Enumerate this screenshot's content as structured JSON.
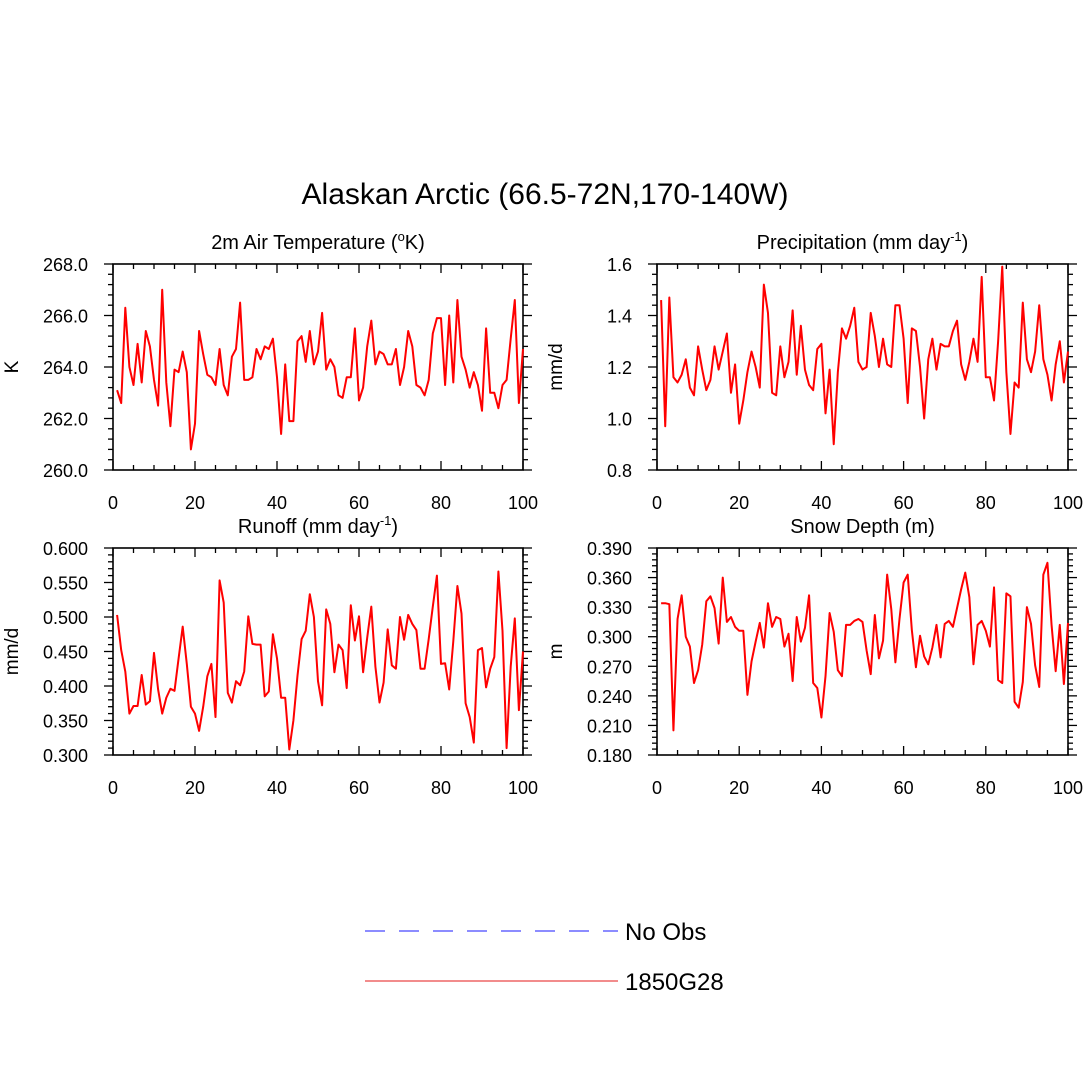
{
  "title": "Alaskan Arctic (66.5-72N,170-140W)",
  "colors": {
    "model": "#ff0000",
    "obs": "#6666ff",
    "legend_model": "#ee6666"
  },
  "legend": {
    "items": [
      {
        "label": "No Obs",
        "style": "dashed",
        "color": "#6666ff"
      },
      {
        "label": "1850G28",
        "style": "solid",
        "color": "#ee6666"
      }
    ]
  },
  "chart_data": [
    {
      "type": "line",
      "title": "2m Air Temperature (",
      "title_sup": "o",
      "title_end": "K)",
      "ylabel": "K",
      "xlim": [
        0,
        100
      ],
      "ylim": [
        260,
        268
      ],
      "xticks": [
        0,
        20,
        40,
        60,
        80,
        100
      ],
      "xtick_labels": [
        "0",
        "20",
        "40",
        "60",
        "80",
        "100"
      ],
      "yticks": [
        260,
        262,
        264,
        266,
        268
      ],
      "ytick_labels": [
        "260.0",
        "262.0",
        "264.0",
        "266.0",
        "268.0"
      ],
      "x_minor": 5,
      "y_minor": 0.4,
      "series": [
        {
          "name": "1850G28",
          "color": "#ff0000",
          "values": [
            263.1,
            262.6,
            266.3,
            264.0,
            263.3,
            264.9,
            263.4,
            265.4,
            264.8,
            263.5,
            262.5,
            267.0,
            263.4,
            261.7,
            263.9,
            263.8,
            264.6,
            263.8,
            260.8,
            261.8,
            265.4,
            264.5,
            263.7,
            263.6,
            263.3,
            264.7,
            263.3,
            262.9,
            264.4,
            264.7,
            266.5,
            263.5,
            263.5,
            263.6,
            264.7,
            264.3,
            264.8,
            264.7,
            265.1,
            263.6,
            261.4,
            264.1,
            261.9,
            261.9,
            265.0,
            265.2,
            264.2,
            265.4,
            264.1,
            264.6,
            266.1,
            263.9,
            264.3,
            264.0,
            262.9,
            262.8,
            263.6,
            263.6,
            265.5,
            262.7,
            263.2,
            264.8,
            265.8,
            264.1,
            264.6,
            264.5,
            264.1,
            264.1,
            264.7,
            263.3,
            264.0,
            265.4,
            264.8,
            263.3,
            263.2,
            262.9,
            263.5,
            265.3,
            265.9,
            265.9,
            263.3,
            266.0,
            263.4,
            266.6,
            264.4,
            263.9,
            263.2,
            263.8,
            263.3,
            262.3,
            265.5,
            263.0,
            263.0,
            262.4,
            263.3,
            263.5,
            265.1,
            266.6,
            262.6,
            264.7
          ]
        }
      ]
    },
    {
      "type": "line",
      "title": "Precipitation (mm day",
      "title_sup": "-1",
      "title_end": ")",
      "ylabel": "mm/d",
      "xlim": [
        0,
        100
      ],
      "ylim": [
        0.8,
        1.6
      ],
      "xticks": [
        0,
        20,
        40,
        60,
        80,
        100
      ],
      "xtick_labels": [
        "0",
        "20",
        "40",
        "60",
        "80",
        "100"
      ],
      "yticks": [
        0.8,
        1.0,
        1.2,
        1.4,
        1.6
      ],
      "ytick_labels": [
        "0.8",
        "1.0",
        "1.2",
        "1.4",
        "1.6"
      ],
      "x_minor": 5,
      "y_minor": 0.04,
      "series": [
        {
          "name": "1850G28",
          "color": "#ff0000",
          "values": [
            1.46,
            0.97,
            1.47,
            1.16,
            1.14,
            1.17,
            1.23,
            1.12,
            1.09,
            1.28,
            1.19,
            1.11,
            1.15,
            1.28,
            1.19,
            1.26,
            1.33,
            1.1,
            1.21,
            0.98,
            1.07,
            1.18,
            1.26,
            1.2,
            1.12,
            1.52,
            1.41,
            1.1,
            1.09,
            1.28,
            1.16,
            1.22,
            1.42,
            1.17,
            1.36,
            1.19,
            1.13,
            1.11,
            1.27,
            1.29,
            1.02,
            1.19,
            0.9,
            1.18,
            1.35,
            1.31,
            1.36,
            1.43,
            1.22,
            1.19,
            1.2,
            1.41,
            1.32,
            1.2,
            1.31,
            1.21,
            1.2,
            1.44,
            1.44,
            1.31,
            1.06,
            1.35,
            1.34,
            1.2,
            1.0,
            1.23,
            1.31,
            1.19,
            1.29,
            1.28,
            1.28,
            1.34,
            1.38,
            1.21,
            1.15,
            1.22,
            1.31,
            1.22,
            1.55,
            1.16,
            1.16,
            1.07,
            1.3,
            1.59,
            1.18,
            0.94,
            1.14,
            1.12,
            1.45,
            1.23,
            1.18,
            1.26,
            1.44,
            1.23,
            1.17,
            1.07,
            1.21,
            1.3,
            1.14,
            1.26
          ]
        }
      ]
    },
    {
      "type": "line",
      "title": "Runoff (mm day",
      "title_sup": "-1",
      "title_end": ")",
      "ylabel": "mm/d",
      "xlim": [
        0,
        100
      ],
      "ylim": [
        0.3,
        0.6
      ],
      "xticks": [
        0,
        20,
        40,
        60,
        80,
        100
      ],
      "xtick_labels": [
        "0",
        "20",
        "40",
        "60",
        "80",
        "100"
      ],
      "yticks": [
        0.3,
        0.35,
        0.4,
        0.45,
        0.5,
        0.55,
        0.6
      ],
      "ytick_labels": [
        "0.300",
        "0.350",
        "0.400",
        "0.450",
        "0.500",
        "0.550",
        "0.600"
      ],
      "x_minor": 5,
      "y_minor": 0.01,
      "series": [
        {
          "name": "1850G28",
          "color": "#ff0000",
          "values": [
            0.503,
            0.452,
            0.421,
            0.36,
            0.371,
            0.371,
            0.416,
            0.373,
            0.378,
            0.448,
            0.395,
            0.36,
            0.383,
            0.396,
            0.393,
            0.44,
            0.486,
            0.432,
            0.37,
            0.36,
            0.335,
            0.37,
            0.414,
            0.432,
            0.355,
            0.553,
            0.521,
            0.39,
            0.376,
            0.407,
            0.401,
            0.421,
            0.501,
            0.461,
            0.46,
            0.46,
            0.385,
            0.392,
            0.475,
            0.44,
            0.383,
            0.383,
            0.308,
            0.35,
            0.415,
            0.468,
            0.48,
            0.533,
            0.5,
            0.407,
            0.372,
            0.511,
            0.49,
            0.42,
            0.46,
            0.452,
            0.397,
            0.517,
            0.466,
            0.501,
            0.42,
            0.47,
            0.515,
            0.428,
            0.376,
            0.405,
            0.482,
            0.43,
            0.425,
            0.5,
            0.467,
            0.503,
            0.49,
            0.481,
            0.425,
            0.425,
            0.468,
            0.515,
            0.56,
            0.432,
            0.433,
            0.395,
            0.465,
            0.545,
            0.505,
            0.375,
            0.355,
            0.318,
            0.452,
            0.455,
            0.398,
            0.425,
            0.442,
            0.566,
            0.48,
            0.31,
            0.428,
            0.498,
            0.365,
            0.45
          ]
        }
      ]
    },
    {
      "type": "line",
      "title": "Snow Depth (m)",
      "title_sup": "",
      "title_end": "",
      "ylabel": "m",
      "xlim": [
        0,
        100
      ],
      "ylim": [
        0.18,
        0.39
      ],
      "xticks": [
        0,
        20,
        40,
        60,
        80,
        100
      ],
      "xtick_labels": [
        "0",
        "20",
        "40",
        "60",
        "80",
        "100"
      ],
      "yticks": [
        0.18,
        0.21,
        0.24,
        0.27,
        0.3,
        0.33,
        0.36,
        0.39
      ],
      "ytick_labels": [
        "0.180",
        "0.210",
        "0.240",
        "0.270",
        "0.300",
        "0.330",
        "0.360",
        "0.390"
      ],
      "x_minor": 5,
      "y_minor": 0.006,
      "series": [
        {
          "name": "1850G28",
          "color": "#ff0000",
          "values": [
            0.334,
            0.334,
            0.333,
            0.205,
            0.318,
            0.342,
            0.3,
            0.29,
            0.253,
            0.266,
            0.292,
            0.336,
            0.341,
            0.329,
            0.293,
            0.36,
            0.315,
            0.32,
            0.31,
            0.306,
            0.306,
            0.241,
            0.275,
            0.295,
            0.314,
            0.289,
            0.334,
            0.31,
            0.32,
            0.318,
            0.29,
            0.303,
            0.255,
            0.32,
            0.295,
            0.309,
            0.342,
            0.253,
            0.248,
            0.218,
            0.26,
            0.324,
            0.305,
            0.266,
            0.26,
            0.312,
            0.312,
            0.316,
            0.318,
            0.315,
            0.286,
            0.262,
            0.322,
            0.278,
            0.296,
            0.363,
            0.328,
            0.274,
            0.318,
            0.355,
            0.363,
            0.307,
            0.269,
            0.301,
            0.28,
            0.272,
            0.289,
            0.312,
            0.279,
            0.313,
            0.316,
            0.31,
            0.329,
            0.348,
            0.365,
            0.34,
            0.272,
            0.312,
            0.316,
            0.306,
            0.29,
            0.35,
            0.256,
            0.253,
            0.344,
            0.341,
            0.234,
            0.228,
            0.254,
            0.33,
            0.313,
            0.271,
            0.249,
            0.363,
            0.375,
            0.312,
            0.265,
            0.312,
            0.252,
            0.314
          ]
        }
      ]
    }
  ]
}
